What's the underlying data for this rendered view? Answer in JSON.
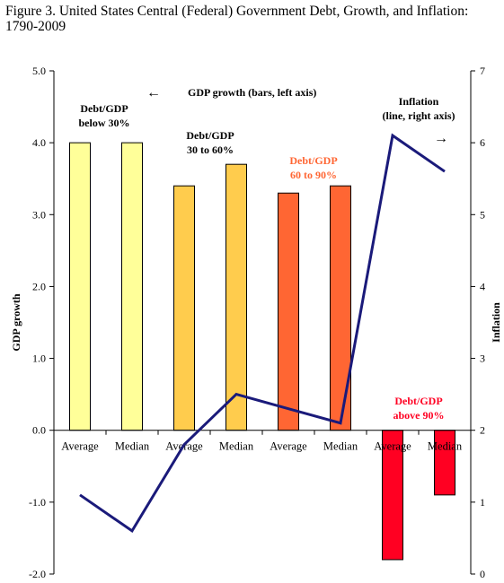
{
  "figure_title_line1": "Figure 3.  United States Central (Federal) Government Debt, Growth, and Inflation:",
  "figure_title_line2": "1790-2009",
  "chart_data": {
    "type": "bar",
    "categories": [
      "Average",
      "Median",
      "Average",
      "Median",
      "Average",
      "Median",
      "Average",
      "Median"
    ],
    "series": [
      {
        "name": "GDP growth (bars, left axis)",
        "values": [
          4.0,
          4.0,
          3.4,
          3.7,
          3.3,
          3.4,
          -1.8,
          -0.9
        ],
        "colors": [
          "#ffff99",
          "#ffff99",
          "#ffcc4d",
          "#ffcc4d",
          "#ff6633",
          "#ff6633",
          "#ff0022",
          "#ff0022"
        ]
      },
      {
        "name": "Inflation (line, right axis)",
        "type": "line",
        "axis": "right",
        "values": [
          1.1,
          0.6,
          1.8,
          2.5,
          2.3,
          2.1,
          6.1,
          5.6
        ],
        "color": "#1a1a7a"
      }
    ],
    "groups": [
      {
        "label_lines": [
          "Debt/GDP",
          "below 30%"
        ],
        "color": "#000000"
      },
      {
        "label_lines": [
          "Debt/GDP",
          "30 to 60%"
        ],
        "color": "#000000"
      },
      {
        "label_lines": [
          "Debt/GDP",
          "60 to 90%"
        ],
        "color": "#ff6633"
      },
      {
        "label_lines": [
          "Debt/GDP",
          "above 90%"
        ],
        "color": "#ff0022"
      }
    ],
    "annotations": {
      "gdp_label": "GDP growth (bars, left axis)",
      "gdp_arrow": "←",
      "inflation_label_lines": [
        "Inflation",
        "(line, right axis)"
      ],
      "inflation_arrow": "→"
    },
    "ylabel": "GDP growth",
    "y2label": "Inflation",
    "ylim": [
      -2.0,
      5.0
    ],
    "y2lim": [
      0,
      7
    ],
    "yticks": [
      "-2.0",
      "-1.0",
      "0.0",
      "1.0",
      "2.0",
      "3.0",
      "4.0",
      "5.0"
    ],
    "y2ticks": [
      "0",
      "1",
      "2",
      "3",
      "4",
      "5",
      "6",
      "7"
    ],
    "grid": false,
    "legend": "none"
  }
}
